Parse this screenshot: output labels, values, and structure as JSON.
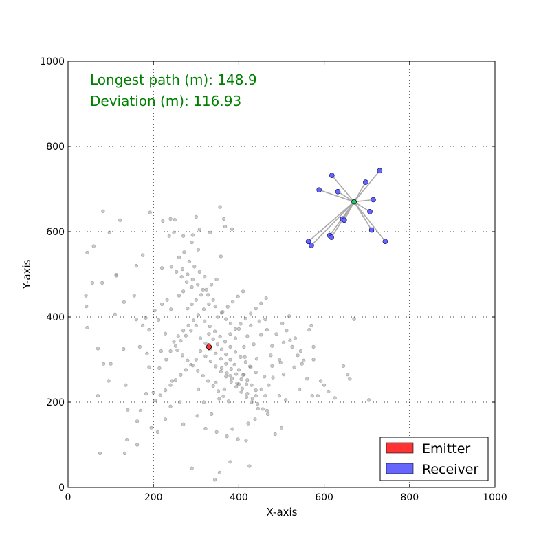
{
  "chart_data": {
    "type": "scatter",
    "title": "",
    "xlabel": "X-axis",
    "ylabel": "Y-axis",
    "xlim": [
      0,
      1000
    ],
    "ylim": [
      0,
      1000
    ],
    "xticks": [
      "0",
      "200",
      "400",
      "600",
      "800",
      "1000"
    ],
    "yticks": [
      "0",
      "200",
      "400",
      "600",
      "800",
      "1000"
    ],
    "grid": true,
    "grid_style": "dotted",
    "legend_position": "lower-right",
    "legend": [
      {
        "label": "Emitter",
        "color": "#ff3333"
      },
      {
        "label": "Receiver",
        "color": "#6666ff"
      }
    ],
    "annotations": [
      {
        "text": "Longest path (m): 148.9",
        "color": "#008000"
      },
      {
        "text": "Deviation (m): 116.93",
        "color": "#008000"
      }
    ],
    "emitter": {
      "x": 330,
      "y": 330,
      "marker": "diamond",
      "color": "#ff3333"
    },
    "receiver_hub": {
      "x": 670,
      "y": 670,
      "color": "#22cc66"
    },
    "receivers": [
      {
        "x": 730,
        "y": 743
      },
      {
        "x": 618,
        "y": 732
      },
      {
        "x": 697,
        "y": 716
      },
      {
        "x": 588,
        "y": 698
      },
      {
        "x": 632,
        "y": 694
      },
      {
        "x": 715,
        "y": 675
      },
      {
        "x": 707,
        "y": 647
      },
      {
        "x": 643,
        "y": 630
      },
      {
        "x": 647,
        "y": 627
      },
      {
        "x": 711,
        "y": 604
      },
      {
        "x": 613,
        "y": 591
      },
      {
        "x": 617,
        "y": 587
      },
      {
        "x": 563,
        "y": 577
      },
      {
        "x": 743,
        "y": 577
      },
      {
        "x": 570,
        "y": 568
      }
    ],
    "receiver_color": "#6666ff",
    "cloud_series": {
      "name": "",
      "color": "#888888",
      "points": [
        [
          82,
          648
        ],
        [
          122,
          627
        ],
        [
          60,
          566
        ],
        [
          97,
          598
        ],
        [
          45,
          551
        ],
        [
          57,
          480
        ],
        [
          80,
          480
        ],
        [
          113,
          499
        ],
        [
          113,
          497
        ],
        [
          42,
          450
        ],
        [
          43,
          425
        ],
        [
          45,
          375
        ],
        [
          110,
          406
        ],
        [
          131,
          435
        ],
        [
          130,
          325
        ],
        [
          100,
          290
        ],
        [
          70,
          326
        ],
        [
          83,
          290
        ],
        [
          95,
          250
        ],
        [
          70,
          215
        ],
        [
          135,
          240
        ],
        [
          138,
          112
        ],
        [
          140,
          182
        ],
        [
          133,
          80
        ],
        [
          75,
          80
        ],
        [
          162,
          155
        ],
        [
          170,
          180
        ],
        [
          162,
          100
        ],
        [
          190,
          282
        ],
        [
          200,
          223
        ],
        [
          195,
          140
        ],
        [
          183,
          220
        ],
        [
          190,
          370
        ],
        [
          182,
          398
        ],
        [
          160,
          394
        ],
        [
          175,
          380
        ],
        [
          168,
          330
        ],
        [
          185,
          314
        ],
        [
          155,
          450
        ],
        [
          160,
          520
        ],
        [
          175,
          545
        ],
        [
          192,
          645
        ],
        [
          222,
          625
        ],
        [
          240,
          630
        ],
        [
          250,
          628
        ],
        [
          220,
          515
        ],
        [
          237,
          590
        ],
        [
          248,
          598
        ],
        [
          292,
          592
        ],
        [
          300,
          635
        ],
        [
          308,
          605
        ],
        [
          333,
          598
        ],
        [
          356,
          658
        ],
        [
          365,
          630
        ],
        [
          368,
          612
        ],
        [
          384,
          606
        ],
        [
          358,
          542
        ],
        [
          305,
          558
        ],
        [
          290,
          575
        ],
        [
          270,
          590
        ],
        [
          203,
          415
        ],
        [
          220,
          430
        ],
        [
          232,
          440
        ],
        [
          241,
          418
        ],
        [
          212,
          393
        ],
        [
          228,
          361
        ],
        [
          218,
          320
        ],
        [
          214,
          280
        ],
        [
          230,
          300
        ],
        [
          244,
          250
        ],
        [
          240,
          190
        ],
        [
          210,
          130
        ],
        [
          228,
          160
        ],
        [
          262,
          200
        ],
        [
          270,
          148
        ],
        [
          303,
          168
        ],
        [
          322,
          138
        ],
        [
          348,
          130
        ],
        [
          372,
          120
        ],
        [
          385,
          137
        ],
        [
          398,
          113
        ],
        [
          417,
          110
        ],
        [
          422,
          150
        ],
        [
          438,
          160
        ],
        [
          445,
          185
        ],
        [
          440,
          215
        ],
        [
          453,
          230
        ],
        [
          460,
          260
        ],
        [
          478,
          285
        ],
        [
          475,
          310
        ],
        [
          495,
          300
        ],
        [
          480,
          258
        ],
        [
          495,
          215
        ],
        [
          470,
          240
        ],
        [
          466,
          180
        ],
        [
          462,
          215
        ],
        [
          510,
          205
        ],
        [
          485,
          125
        ],
        [
          500,
          140
        ],
        [
          425,
          50
        ],
        [
          380,
          60
        ],
        [
          355,
          35
        ],
        [
          344,
          18
        ],
        [
          290,
          45
        ],
        [
          305,
          230
        ],
        [
          318,
          200
        ],
        [
          336,
          172
        ],
        [
          354,
          208
        ],
        [
          346,
          246
        ],
        [
          366,
          230
        ],
        [
          380,
          262
        ],
        [
          400,
          242
        ],
        [
          412,
          265
        ],
        [
          426,
          284
        ],
        [
          414,
          306
        ],
        [
          442,
          302
        ],
        [
          435,
          336
        ],
        [
          452,
          358
        ],
        [
          448,
          390
        ],
        [
          462,
          394
        ],
        [
          466,
          370
        ],
        [
          478,
          332
        ],
        [
          488,
          360
        ],
        [
          502,
          385
        ],
        [
          512,
          368
        ],
        [
          518,
          402
        ],
        [
          532,
          350
        ],
        [
          538,
          310
        ],
        [
          548,
          290
        ],
        [
          560,
          255
        ],
        [
          542,
          230
        ],
        [
          572,
          215
        ],
        [
          585,
          215
        ],
        [
          592,
          250
        ],
        [
          610,
          225
        ],
        [
          625,
          210
        ],
        [
          645,
          285
        ],
        [
          655,
          265
        ],
        [
          660,
          255
        ],
        [
          670,
          395
        ],
        [
          705,
          205
        ],
        [
          600,
          240
        ],
        [
          575,
          300
        ],
        [
          570,
          380
        ],
        [
          565,
          370
        ],
        [
          545,
          320
        ],
        [
          525,
          330
        ],
        [
          505,
          340
        ],
        [
          575,
          330
        ],
        [
          520,
          345
        ],
        [
          552,
          298
        ],
        [
          530,
          282
        ],
        [
          505,
          265
        ],
        [
          498,
          293
        ],
        [
          412,
          330
        ],
        [
          420,
          355
        ],
        [
          428,
          380
        ],
        [
          400,
          372
        ],
        [
          392,
          350
        ],
        [
          381,
          385
        ],
        [
          370,
          395
        ],
        [
          360,
          410
        ],
        [
          345,
          425
        ],
        [
          330,
          430
        ],
        [
          318,
          418
        ],
        [
          305,
          405
        ],
        [
          294,
          392
        ],
        [
          282,
          380
        ],
        [
          270,
          368
        ],
        [
          258,
          355
        ],
        [
          248,
          342
        ],
        [
          256,
          322
        ],
        [
          268,
          310
        ],
        [
          280,
          298
        ],
        [
          292,
          286
        ],
        [
          304,
          274
        ],
        [
          316,
          262
        ],
        [
          328,
          250
        ],
        [
          340,
          238
        ],
        [
          352,
          226
        ],
        [
          364,
          214
        ],
        [
          376,
          202
        ],
        [
          320,
          390
        ],
        [
          332,
          378
        ],
        [
          344,
          366
        ],
        [
          356,
          354
        ],
        [
          368,
          342
        ],
        [
          380,
          330
        ],
        [
          392,
          318
        ],
        [
          404,
          306
        ],
        [
          416,
          294
        ],
        [
          428,
          282
        ],
        [
          440,
          270
        ],
        [
          310,
          350
        ],
        [
          322,
          338
        ],
        [
          334,
          326
        ],
        [
          346,
          314
        ],
        [
          358,
          302
        ],
        [
          370,
          290
        ],
        [
          382,
          278
        ],
        [
          394,
          266
        ],
        [
          406,
          254
        ],
        [
          418,
          242
        ],
        [
          300,
          440
        ],
        [
          312,
          452
        ],
        [
          324,
          464
        ],
        [
          336,
          476
        ],
        [
          348,
          488
        ],
        [
          290,
          470
        ],
        [
          278,
          482
        ],
        [
          266,
          494
        ],
        [
          254,
          506
        ],
        [
          242,
          518
        ],
        [
          260,
          540
        ],
        [
          272,
          552
        ],
        [
          284,
          530
        ],
        [
          296,
          518
        ],
        [
          308,
          506
        ],
        [
          320,
          494
        ],
        [
          260,
          450
        ],
        [
          270,
          460
        ],
        [
          280,
          420
        ],
        [
          290,
          430
        ],
        [
          300,
          380
        ],
        [
          288,
          368
        ],
        [
          276,
          356
        ],
        [
          264,
          344
        ],
        [
          252,
          332
        ],
        [
          240,
          320
        ],
        [
          330,
          360
        ],
        [
          340,
          348
        ],
        [
          350,
          336
        ],
        [
          360,
          324
        ],
        [
          370,
          312
        ],
        [
          380,
          300
        ],
        [
          390,
          288
        ],
        [
          400,
          276
        ],
        [
          410,
          264
        ],
        [
          420,
          252
        ],
        [
          430,
          240
        ],
        [
          440,
          228
        ],
        [
          350,
          400
        ],
        [
          362,
          412
        ],
        [
          374,
          424
        ],
        [
          386,
          436
        ],
        [
          398,
          448
        ],
        [
          410,
          460
        ],
        [
          340,
          440
        ],
        [
          328,
          452
        ],
        [
          316,
          464
        ],
        [
          304,
          476
        ],
        [
          292,
          488
        ],
        [
          280,
          500
        ],
        [
          268,
          512
        ],
        [
          380,
          360
        ],
        [
          392,
          372
        ],
        [
          404,
          384
        ],
        [
          416,
          396
        ],
        [
          428,
          408
        ],
        [
          440,
          420
        ],
        [
          452,
          432
        ],
        [
          464,
          444
        ],
        [
          300,
          300
        ],
        [
          288,
          288
        ],
        [
          276,
          276
        ],
        [
          264,
          264
        ],
        [
          252,
          252
        ],
        [
          240,
          240
        ],
        [
          228,
          228
        ],
        [
          216,
          216
        ],
        [
          204,
          204
        ],
        [
          360,
          280
        ],
        [
          372,
          268
        ],
        [
          384,
          256
        ],
        [
          396,
          244
        ],
        [
          408,
          232
        ],
        [
          420,
          220
        ],
        [
          432,
          208
        ],
        [
          444,
          196
        ],
        [
          456,
          184
        ],
        [
          468,
          172
        ],
        [
          310,
          320
        ],
        [
          322,
          308
        ],
        [
          334,
          296
        ],
        [
          346,
          284
        ],
        [
          358,
          272
        ],
        [
          370,
          260
        ],
        [
          382,
          248
        ],
        [
          394,
          236
        ],
        [
          406,
          224
        ],
        [
          418,
          212
        ],
        [
          430,
          200
        ]
      ]
    }
  }
}
